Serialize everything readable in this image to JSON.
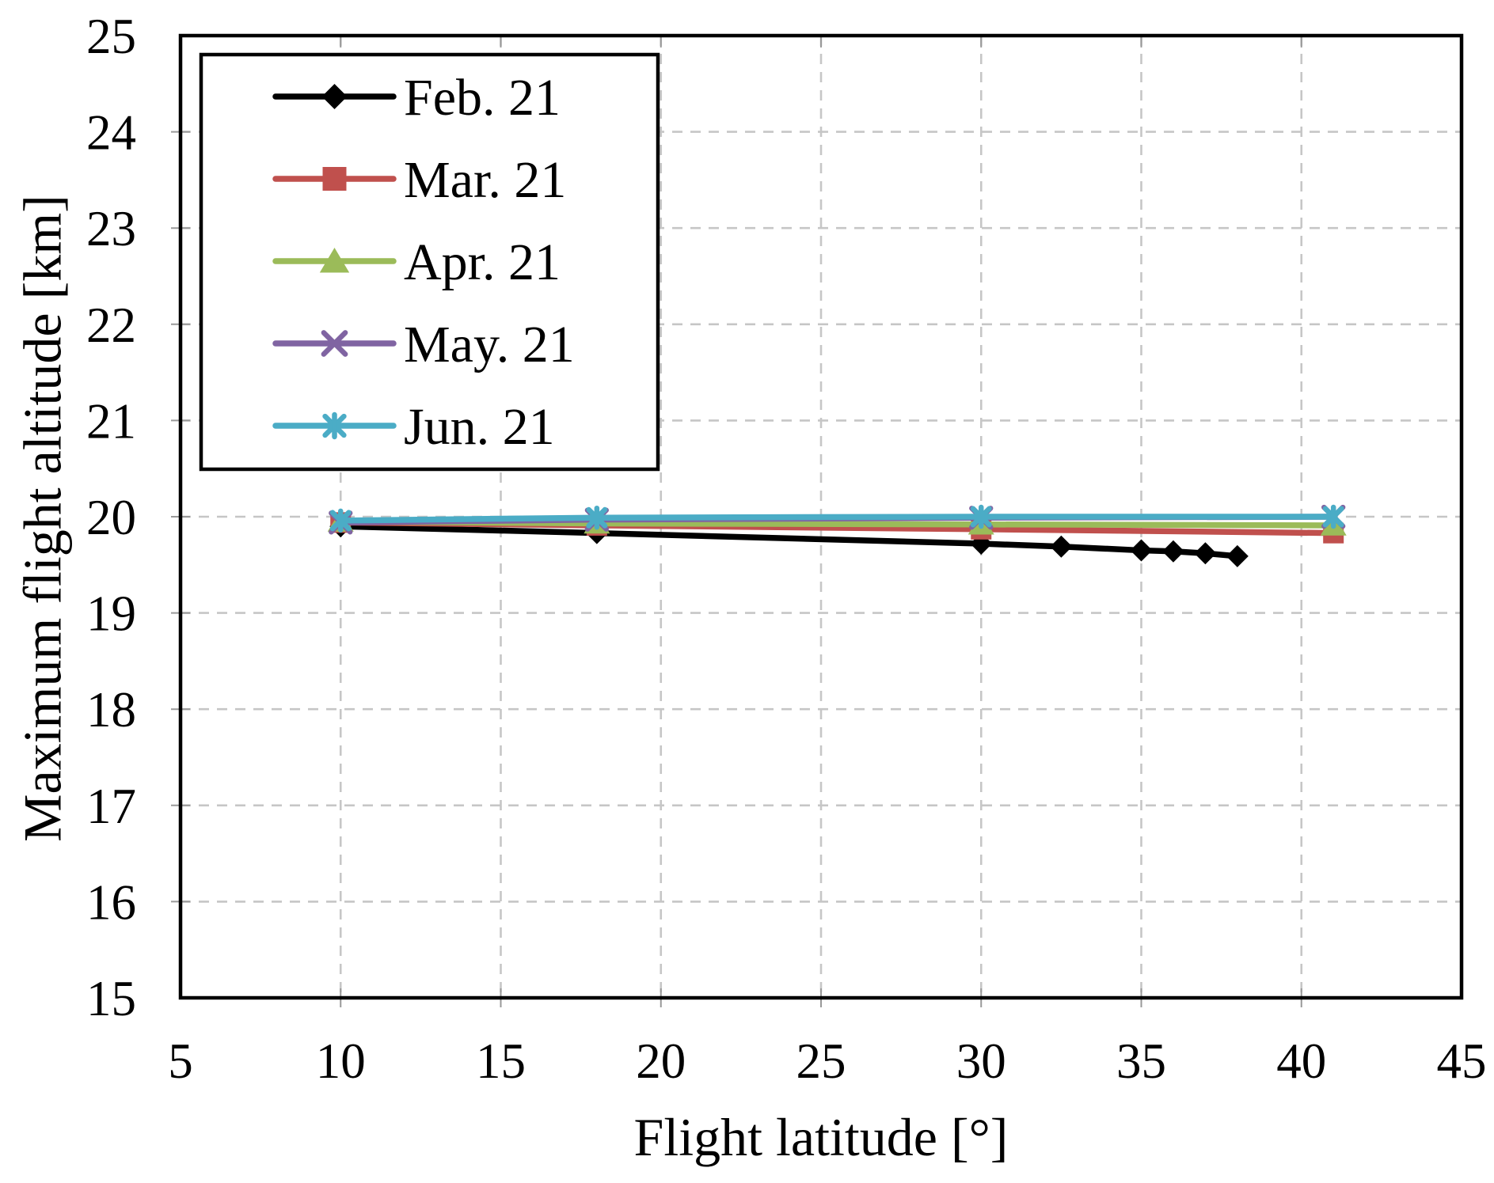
{
  "chart_data": {
    "type": "line",
    "title": "",
    "xlabel": "Flight latitude [°]",
    "ylabel": "Maximum flight altitude [km]",
    "xlim": [
      5,
      45
    ],
    "ylim": [
      15,
      25
    ],
    "xticks": [
      5,
      10,
      15,
      20,
      25,
      30,
      35,
      40,
      45
    ],
    "yticks": [
      15,
      16,
      17,
      18,
      19,
      20,
      21,
      22,
      23,
      24,
      25
    ],
    "grid": "dashed-both-axes",
    "legend_position": "upper-left",
    "series": [
      {
        "name": "Feb. 21",
        "color": "#000000",
        "marker": "diamond",
        "x": [
          10,
          18,
          30,
          32.5,
          35,
          36,
          37,
          38
        ],
        "y": [
          19.9,
          19.83,
          19.72,
          19.69,
          19.65,
          19.64,
          19.62,
          19.59
        ]
      },
      {
        "name": "Mar. 21",
        "color": "#c0504d",
        "marker": "square",
        "x": [
          10,
          18,
          30,
          41
        ],
        "y": [
          19.94,
          19.91,
          19.87,
          19.83
        ]
      },
      {
        "name": "Apr. 21",
        "color": "#9bbb59",
        "marker": "triangle",
        "x": [
          10,
          18,
          30,
          41
        ],
        "y": [
          19.95,
          19.93,
          19.92,
          19.91
        ]
      },
      {
        "name": "May. 21",
        "color": "#8064a2",
        "marker": "x",
        "x": [
          10,
          18,
          30,
          41
        ],
        "y": [
          19.94,
          19.97,
          19.99,
          20.0
        ]
      },
      {
        "name": "Jun. 21",
        "color": "#4bacc6",
        "marker": "star",
        "x": [
          10,
          18,
          30,
          41
        ],
        "y": [
          19.96,
          19.99,
          20.0,
          20.0
        ]
      }
    ],
    "styles": {
      "grid_color": "#c6c6c6",
      "axis_color": "#000000",
      "tick_color": "#999999",
      "plot_background": "#ffffff"
    }
  }
}
